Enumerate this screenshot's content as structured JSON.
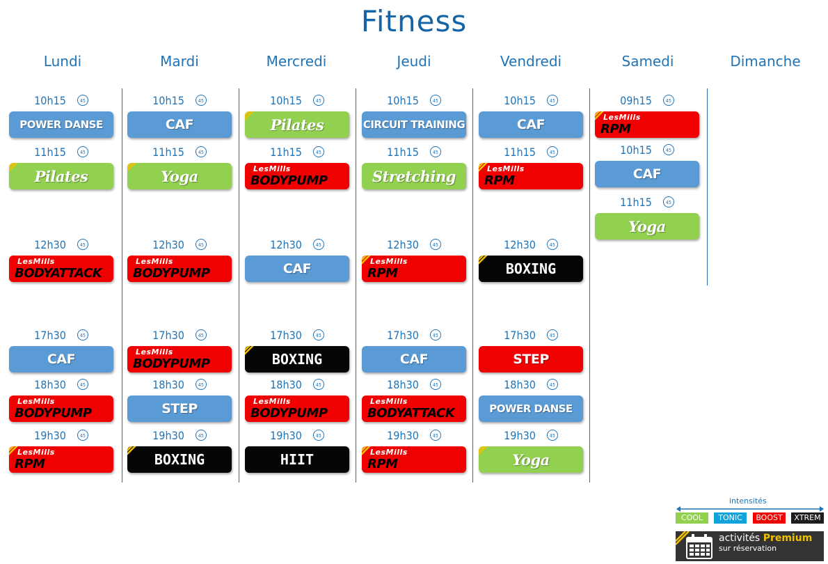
{
  "page": {
    "title": "Fitness"
  },
  "days": [
    "Lundi",
    "Mardi",
    "Mercredi",
    "Jeudi",
    "Vendredi",
    "Samedi",
    "Dimanche"
  ],
  "duration_label": "45",
  "colors": {
    "cool": "#92d050",
    "tonic": "#5b9bd5",
    "boost": "#f00000",
    "xtrem": "#050505",
    "premium_accent": "#f2c200"
  },
  "schedule": [
    [
      {
        "time": "10h15",
        "name": "POWER DANSE",
        "type": "blue"
      },
      {
        "time": "11h15",
        "name": "Pilates",
        "type": "green",
        "premium": true
      },
      {
        "time": "12h30",
        "name": "BODYATTACK",
        "type": "red",
        "brand": "LesMills"
      },
      {
        "time": "17h30",
        "name": "CAF",
        "type": "blue"
      },
      {
        "time": "18h30",
        "name": "BODYPUMP",
        "type": "red",
        "brand": "LesMills"
      },
      {
        "time": "19h30",
        "name": "RPM",
        "type": "red",
        "brand": "LesMills",
        "premium": true
      }
    ],
    [
      {
        "time": "10h15",
        "name": "CAF",
        "type": "blue"
      },
      {
        "time": "11h15",
        "name": "Yoga",
        "type": "green",
        "premium": true
      },
      {
        "time": "12h30",
        "name": "BODYPUMP",
        "type": "red",
        "brand": "LesMills"
      },
      {
        "time": "17h30",
        "name": "BODYPUMP",
        "type": "red",
        "brand": "LesMills"
      },
      {
        "time": "18h30",
        "name": "STEP",
        "type": "blue"
      },
      {
        "time": "19h30",
        "name": "BOXING",
        "type": "black",
        "premium": true
      }
    ],
    [
      {
        "time": "10h15",
        "name": "Pilates",
        "type": "green",
        "premium": true
      },
      {
        "time": "11h15",
        "name": "BODYPUMP",
        "type": "red",
        "brand": "LesMills"
      },
      {
        "time": "12h30",
        "name": "CAF",
        "type": "blue"
      },
      {
        "time": "17h30",
        "name": "BOXING",
        "type": "black",
        "premium": true
      },
      {
        "time": "18h30",
        "name": "BODYPUMP",
        "type": "red",
        "brand": "LesMills"
      },
      {
        "time": "19h30",
        "name": "HIIT",
        "type": "black"
      }
    ],
    [
      {
        "time": "10h15",
        "name": "CIRCUIT TRAINING",
        "type": "blue"
      },
      {
        "time": "11h15",
        "name": "Stretching",
        "type": "green"
      },
      {
        "time": "12h30",
        "name": "RPM",
        "type": "red",
        "brand": "LesMills",
        "premium": true
      },
      {
        "time": "17h30",
        "name": "CAF",
        "type": "blue"
      },
      {
        "time": "18h30",
        "name": "BODYATTACK",
        "type": "red",
        "brand": "LesMills"
      },
      {
        "time": "19h30",
        "name": "RPM",
        "type": "red",
        "brand": "LesMills",
        "premium": true
      }
    ],
    [
      {
        "time": "10h15",
        "name": "CAF",
        "type": "blue"
      },
      {
        "time": "11h15",
        "name": "RPM",
        "type": "red",
        "brand": "LesMills",
        "premium": true
      },
      {
        "time": "12h30",
        "name": "BOXING",
        "type": "black",
        "premium": true
      },
      {
        "time": "17h30",
        "name": "STEP",
        "type": "red"
      },
      {
        "time": "18h30",
        "name": "POWER DANSE",
        "type": "blue"
      },
      {
        "time": "19h30",
        "name": "Yoga",
        "type": "green",
        "premium": true
      }
    ],
    [
      {
        "time": "09h15",
        "name": "RPM",
        "type": "red",
        "brand": "LesMills",
        "premium": true
      },
      {
        "time": "10h15",
        "name": "CAF",
        "type": "blue"
      },
      {
        "time": "11h15",
        "name": "Yoga",
        "type": "green"
      }
    ],
    []
  ],
  "legend": {
    "title": "intensités",
    "items": [
      {
        "label": "COOL",
        "color": "#92d050"
      },
      {
        "label": "TONIC",
        "color": "#12a3dc"
      },
      {
        "label": "BOOST",
        "color": "#f00000"
      },
      {
        "label": "XTREM",
        "color": "#1e1e1e"
      }
    ],
    "premium_word1": "activités",
    "premium_word2": "Premium",
    "premium_sub": "sur réservation",
    "calendar_icon": "calendar-icon"
  }
}
